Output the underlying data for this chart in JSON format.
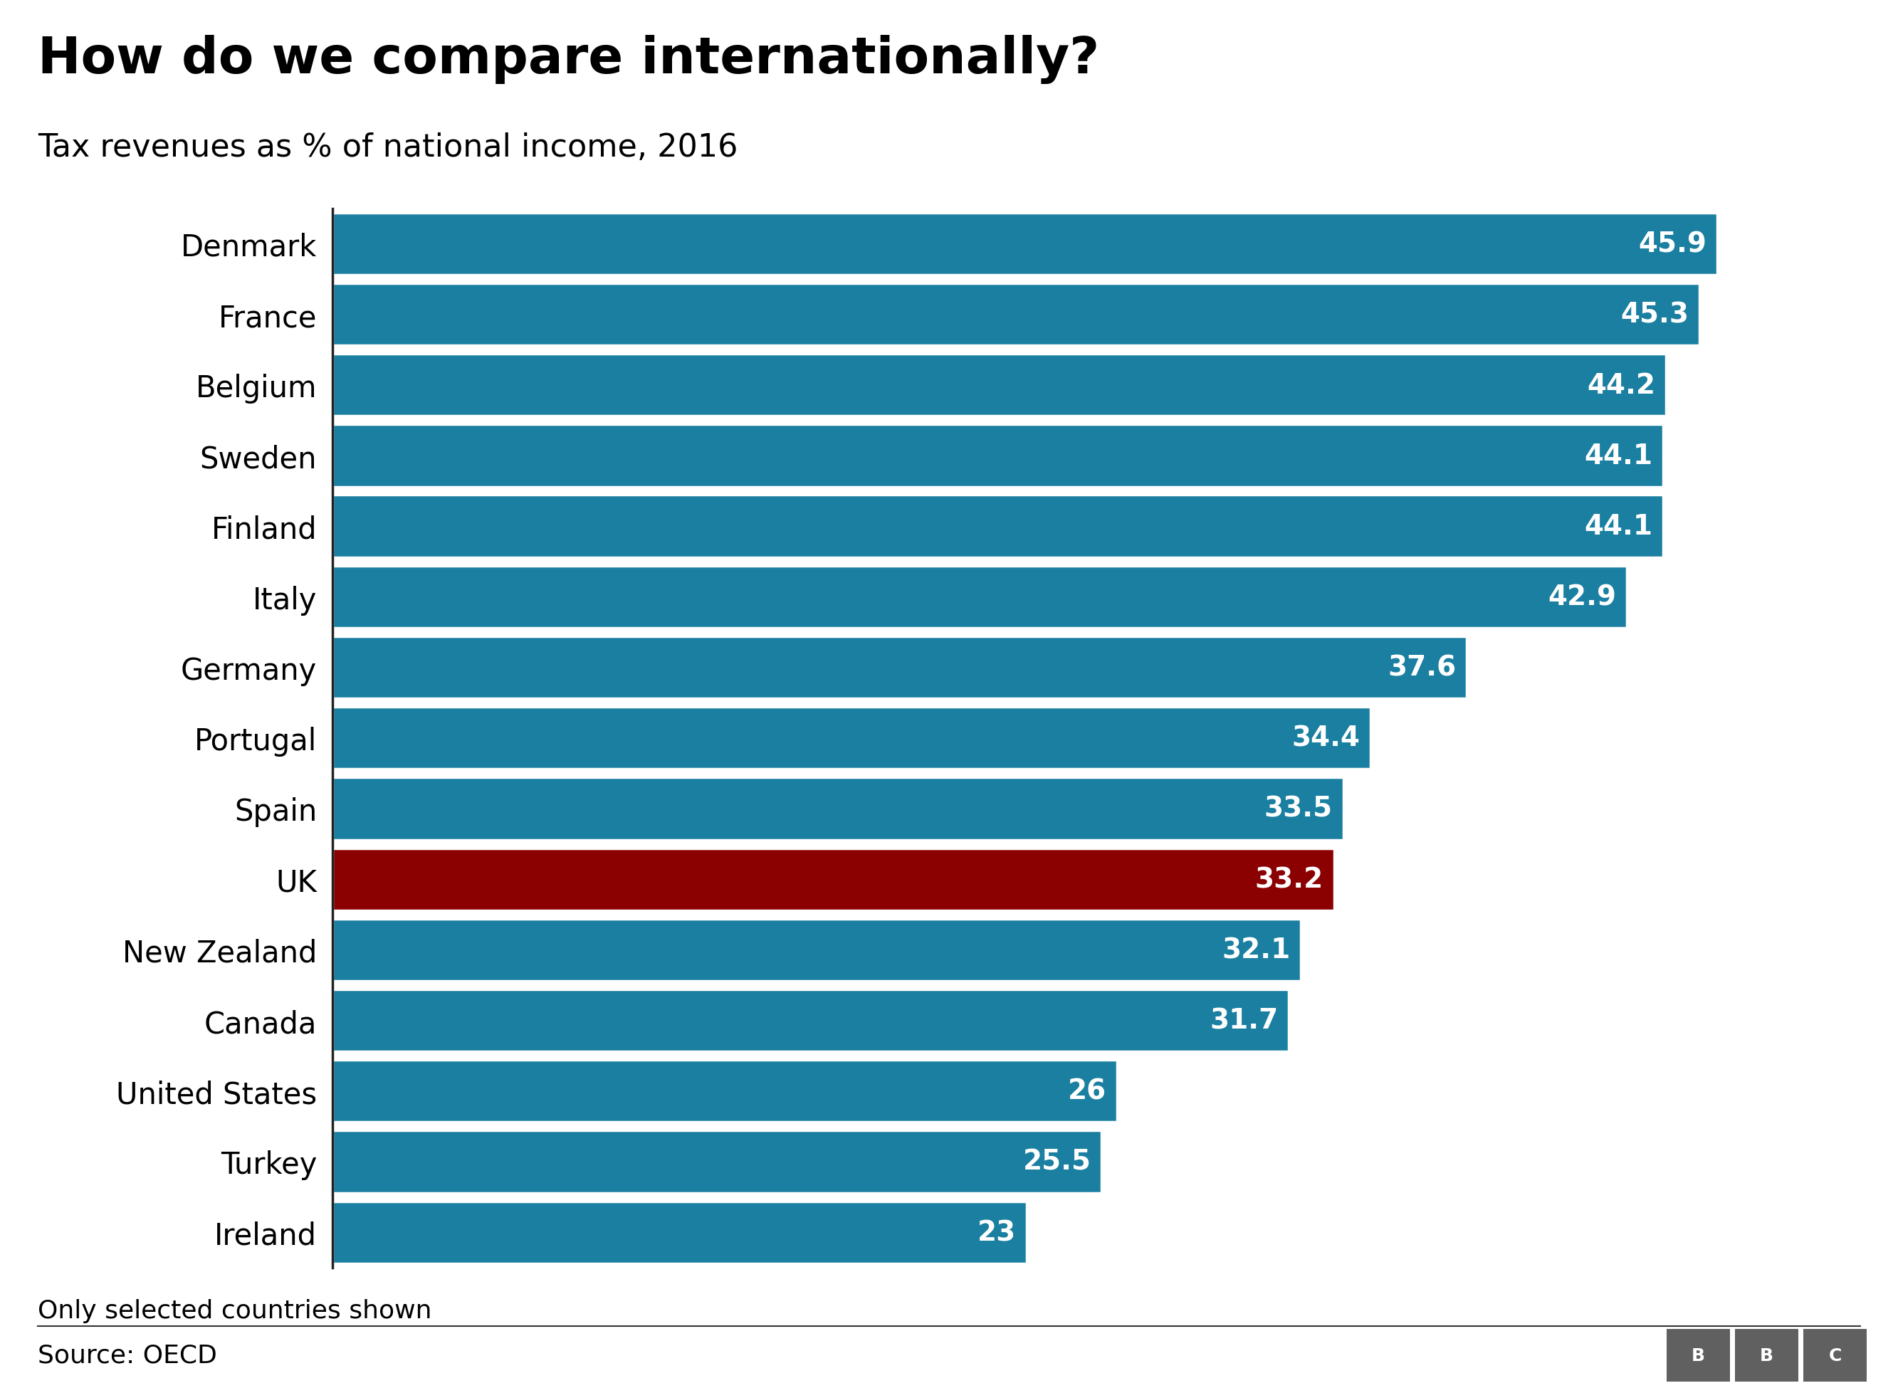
{
  "title": "How do we compare internationally?",
  "subtitle": "Tax revenues as % of national income, 2016",
  "footnote": "Only selected countries shown",
  "source": "Source: OECD",
  "countries": [
    "Denmark",
    "France",
    "Belgium",
    "Sweden",
    "Finland",
    "Italy",
    "Germany",
    "Portugal",
    "Spain",
    "UK",
    "New Zealand",
    "Canada",
    "United States",
    "Turkey",
    "Ireland"
  ],
  "values": [
    45.9,
    45.3,
    44.2,
    44.1,
    44.1,
    42.9,
    37.6,
    34.4,
    33.5,
    33.2,
    32.1,
    31.7,
    26.0,
    25.5,
    23.0
  ],
  "bar_color_default": "#1a7fa0",
  "bar_color_highlight": "#8b0000",
  "highlight_country": "UK",
  "value_label_color": "#ffffff",
  "background_color": "#ffffff",
  "title_fontsize": 52,
  "subtitle_fontsize": 32,
  "footnote_fontsize": 26,
  "source_fontsize": 26,
  "label_fontsize": 30,
  "value_fontsize": 28,
  "bar_gap": 0.12,
  "xlim_max": 50
}
